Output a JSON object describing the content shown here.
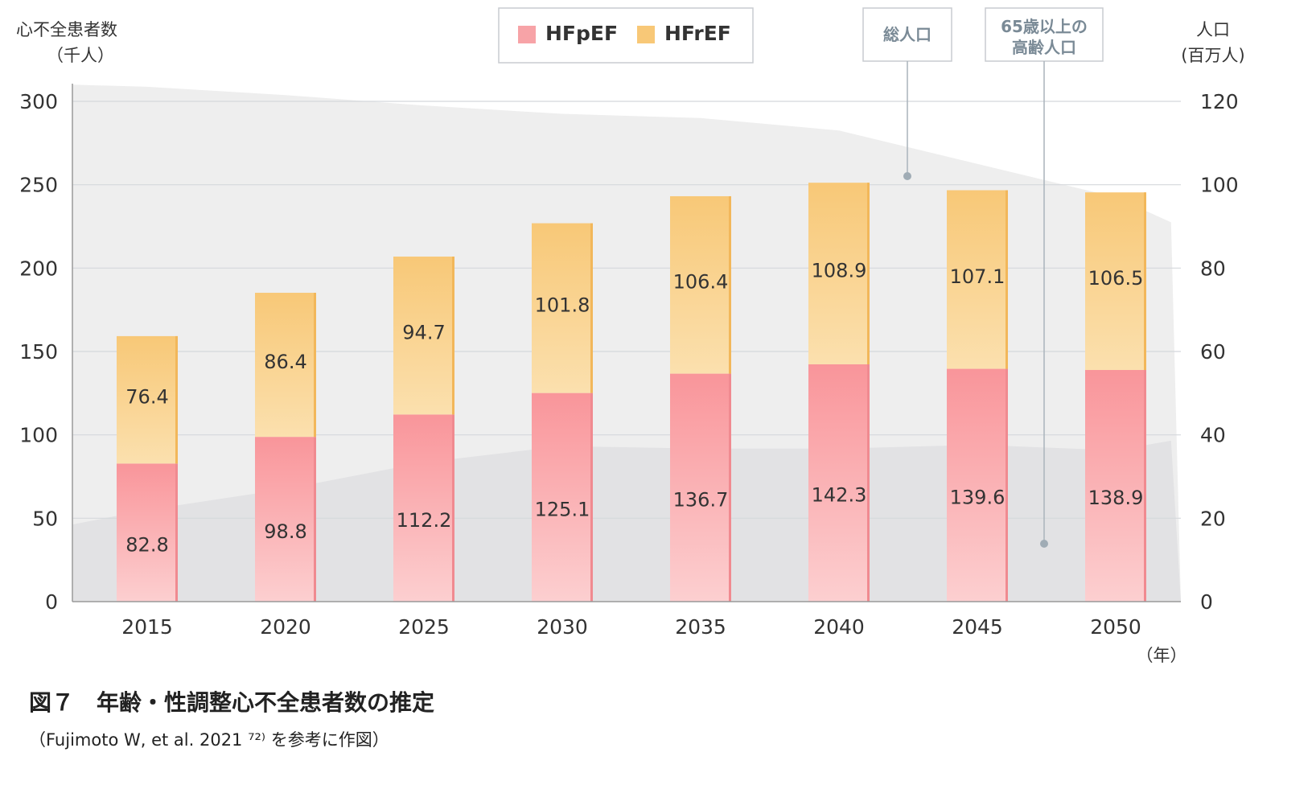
{
  "chart_data": {
    "type": "bar",
    "stacked": true,
    "categories": [
      "2015",
      "2020",
      "2025",
      "2030",
      "2035",
      "2040",
      "2045",
      "2050"
    ],
    "series": [
      {
        "name": "HFpEF",
        "values": [
          82.8,
          98.8,
          112.2,
          125.1,
          136.7,
          142.3,
          139.6,
          138.9
        ],
        "color": "#f7969b"
      },
      {
        "name": "HFrEF",
        "values": [
          76.4,
          86.4,
          94.7,
          101.8,
          106.4,
          108.9,
          107.1,
          106.5
        ],
        "color": "#f8c877"
      }
    ],
    "area_series": [
      {
        "name": "総人口",
        "axis": "right",
        "x": [
          2012,
          2015,
          2020,
          2025,
          2030,
          2035,
          2040,
          2045,
          2050,
          2052
        ],
        "values": [
          124,
          123.5,
          121.5,
          119,
          117,
          116,
          113,
          105,
          97,
          91
        ],
        "color": "#eeeeee"
      },
      {
        "name": "65歳以上の高齢人口",
        "axis": "right",
        "x": [
          2012,
          2015,
          2020,
          2025,
          2030,
          2035,
          2040,
          2045,
          2050,
          2052
        ],
        "values": [
          18.5,
          22,
          27,
          33.4,
          37.3,
          36.7,
          36.7,
          37.6,
          36.3,
          38.6
        ],
        "color": "#e2e2e4"
      }
    ],
    "ylabel_left": [
      "心不全患者数",
      "（千人）"
    ],
    "ylabel_right": [
      "人口",
      "(百万人)"
    ],
    "xlabel": "（年）",
    "ylim_left": [
      0,
      300
    ],
    "yticks_left": [
      0,
      50,
      100,
      150,
      200,
      250,
      300
    ],
    "ylim_right": [
      0,
      120
    ],
    "yticks_right": [
      0,
      20,
      40,
      60,
      80,
      100,
      120
    ],
    "grid": true,
    "legend_placement": "top-center"
  },
  "callouts": {
    "total": "総人口",
    "elderly_line1": "65歳以上の",
    "elderly_line2": "高齢人口"
  },
  "caption": {
    "title": "図７　年齢・性調整心不全患者数の推定",
    "source": "（Fujimoto W, et al. 2021 ⁷²⁾ を参考に作図）"
  }
}
